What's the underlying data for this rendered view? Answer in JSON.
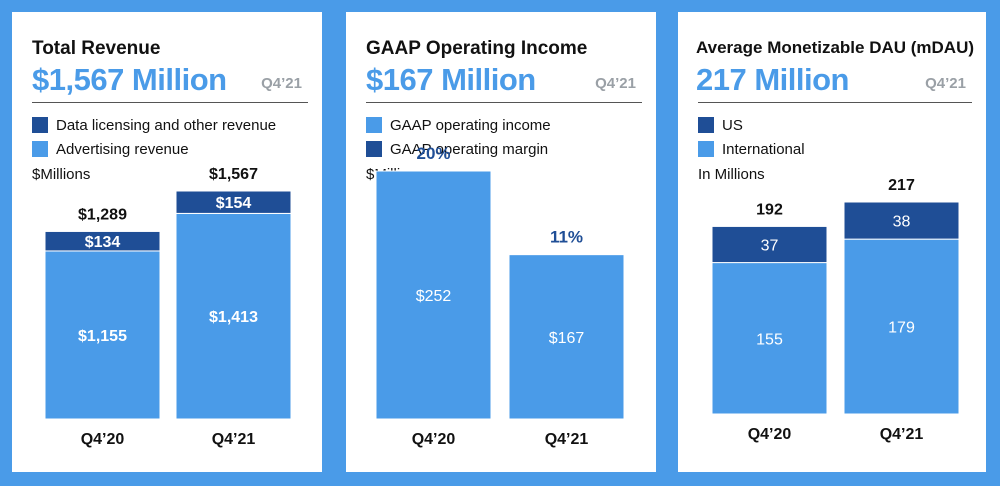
{
  "colors": {
    "background": "#4a9be8",
    "dark_blue": "#1f4e96",
    "light_blue": "#4a9be8",
    "period_gray": "#9aa0a6"
  },
  "panels": [
    {
      "title": "Total Revenue",
      "headline": "$1,567 Million",
      "period": "Q4’21",
      "legend": [
        {
          "label": "Data licensing and other revenue",
          "color": "#1f4e96"
        },
        {
          "label": "Advertising revenue",
          "color": "#4a9be8"
        }
      ],
      "unit_label": "$Millions"
    },
    {
      "title": "GAAP Operating Income",
      "headline": "$167 Million",
      "period": "Q4’21",
      "legend": [
        {
          "label": "GAAP operating income",
          "color": "#4a9be8"
        },
        {
          "label": "GAAP operating margin",
          "color": "#1f4e96"
        }
      ],
      "unit_label": "$Millions"
    },
    {
      "title": "Average Monetizable DAU (mDAU)",
      "headline": "217 Million",
      "period": "Q4’21",
      "legend": [
        {
          "label": "US",
          "color": "#1f4e96"
        },
        {
          "label": "International",
          "color": "#4a9be8"
        }
      ],
      "unit_label": "In Millions"
    }
  ],
  "chart_data": [
    {
      "type": "bar",
      "stacked": true,
      "categories": [
        "Q4’20",
        "Q4’21"
      ],
      "series": [
        {
          "name": "Advertising revenue",
          "values": [
            1155,
            1413
          ],
          "labels": [
            "$1,155",
            "$1,413"
          ],
          "color": "#4a9be8"
        },
        {
          "name": "Data licensing and other revenue",
          "values": [
            134,
            154
          ],
          "labels": [
            "$134",
            "$154"
          ],
          "color": "#1f4e96"
        }
      ],
      "totals": [
        1289,
        1567
      ],
      "total_labels": [
        "$1,289",
        "$1,567"
      ],
      "ylim": [
        0,
        1567
      ]
    },
    {
      "type": "bar",
      "stacked": false,
      "categories": [
        "Q4’20",
        "Q4’21"
      ],
      "series": [
        {
          "name": "GAAP operating income",
          "values": [
            252,
            167
          ],
          "labels": [
            "$252",
            "$167"
          ],
          "color": "#4a9be8"
        }
      ],
      "top_labels": [
        "20%",
        "11%"
      ],
      "top_label_color": "#1f4e96",
      "ylim": [
        0,
        252
      ]
    },
    {
      "type": "bar",
      "stacked": true,
      "categories": [
        "Q4’20",
        "Q4’21"
      ],
      "series": [
        {
          "name": "International",
          "values": [
            155,
            179
          ],
          "labels": [
            "155",
            "179"
          ],
          "color": "#4a9be8"
        },
        {
          "name": "US",
          "values": [
            37,
            38
          ],
          "labels": [
            "37",
            "38"
          ],
          "color": "#1f4e96"
        }
      ],
      "totals": [
        192,
        217
      ],
      "total_labels": [
        "192",
        "217"
      ],
      "ylim": [
        0,
        217
      ]
    }
  ]
}
